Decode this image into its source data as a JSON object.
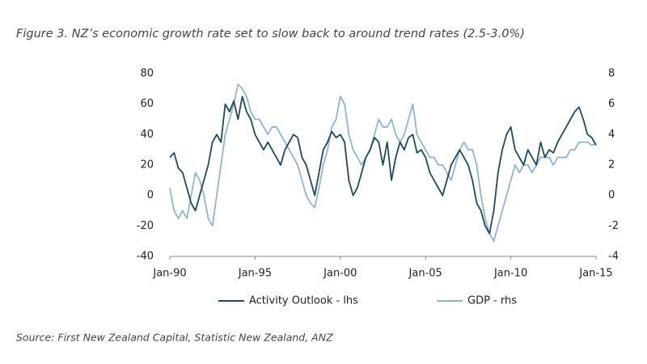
{
  "chart_data": {
    "type": "line",
    "title": "Figure 3. NZ’s economic growth rate set to slow back to around trend rates (2.5-3.0%)",
    "source": "Source: First New Zealand Capital, Statistic New Zealand, ANZ",
    "x": [
      1990,
      1990.25,
      1990.5,
      1990.75,
      1991,
      1991.25,
      1991.5,
      1991.75,
      1992,
      1992.25,
      1992.5,
      1992.75,
      1993,
      1993.25,
      1993.5,
      1993.75,
      1994,
      1994.25,
      1994.5,
      1994.75,
      1995,
      1995.25,
      1995.5,
      1995.75,
      1996,
      1996.25,
      1996.5,
      1996.75,
      1997,
      1997.25,
      1997.5,
      1997.75,
      1998,
      1998.25,
      1998.5,
      1998.75,
      1999,
      1999.25,
      1999.5,
      1999.75,
      2000,
      2000.25,
      2000.5,
      2000.75,
      2001,
      2001.25,
      2001.5,
      2001.75,
      2002,
      2002.25,
      2002.5,
      2002.75,
      2003,
      2003.25,
      2003.5,
      2003.75,
      2004,
      2004.25,
      2004.5,
      2004.75,
      2005,
      2005.25,
      2005.5,
      2005.75,
      2006,
      2006.25,
      2006.5,
      2006.75,
      2007,
      2007.25,
      2007.5,
      2007.75,
      2008,
      2008.25,
      2008.5,
      2008.75,
      2009,
      2009.25,
      2009.5,
      2009.75,
      2010,
      2010.25,
      2010.5,
      2010.75,
      2011,
      2011.25,
      2011.5,
      2011.75,
      2012,
      2012.25,
      2012.5,
      2012.75,
      2013,
      2013.25,
      2013.5,
      2013.75,
      2014,
      2014.25,
      2014.5,
      2014.75,
      2015
    ],
    "series": [
      {
        "name": "Activity Outlook - lhs",
        "color": "#1f4a5c",
        "axis": "y",
        "values": [
          25,
          28,
          18,
          15,
          5,
          -5,
          -10,
          0,
          10,
          20,
          35,
          40,
          35,
          60,
          55,
          62,
          50,
          65,
          55,
          50,
          40,
          35,
          30,
          35,
          30,
          25,
          20,
          30,
          35,
          40,
          38,
          25,
          20,
          10,
          0,
          15,
          30,
          35,
          42,
          38,
          40,
          35,
          10,
          0,
          5,
          15,
          25,
          30,
          38,
          35,
          20,
          35,
          10,
          25,
          35,
          30,
          38,
          40,
          28,
          30,
          25,
          15,
          10,
          5,
          0,
          10,
          20,
          25,
          30,
          25,
          20,
          10,
          -5,
          -10,
          -20,
          -25,
          -10,
          15,
          30,
          40,
          45,
          30,
          25,
          20,
          30,
          25,
          20,
          35,
          25,
          30,
          28,
          35,
          40,
          45,
          50,
          55,
          58,
          50,
          40,
          38,
          33
        ]
      },
      {
        "name": "GDP - rhs",
        "color": "#8fb4d6",
        "axis": "y2",
        "values": [
          0.5,
          -1,
          -1.5,
          -1,
          -1.5,
          0,
          1.5,
          1,
          0,
          -1.5,
          -2,
          0,
          2,
          4,
          5,
          6,
          7.3,
          7,
          6.5,
          5.5,
          5,
          5,
          4.5,
          4,
          4.5,
          4.5,
          4,
          3.5,
          3,
          2.5,
          2,
          1,
          0,
          -0.5,
          -0.8,
          0.5,
          2,
          3,
          4.5,
          5,
          6.5,
          6,
          4,
          3,
          2.5,
          2,
          2.5,
          3,
          4,
          5,
          4.5,
          4.5,
          5,
          4,
          3.5,
          4,
          5,
          6,
          4,
          3.5,
          3,
          2.5,
          2.5,
          2,
          2,
          1.5,
          1,
          2,
          3,
          3.5,
          3,
          3,
          2,
          0,
          -1.5,
          -2.5,
          -3,
          -2,
          -1,
          0,
          1,
          2,
          1.5,
          2,
          2,
          1.5,
          2,
          2.5,
          2.5,
          2.5,
          2,
          2.5,
          2.5,
          2.5,
          3,
          3,
          3.5,
          3.5,
          3.5,
          3.3,
          3.4
        ]
      }
    ],
    "xlim": [
      1990,
      2015
    ],
    "xticks": [
      {
        "value": 1990,
        "label": "Jan-90"
      },
      {
        "value": 1995,
        "label": "Jan-95"
      },
      {
        "value": 2000,
        "label": "Jan-00"
      },
      {
        "value": 2005,
        "label": "Jan-05"
      },
      {
        "value": 2010,
        "label": "Jan-10"
      },
      {
        "value": 2015,
        "label": "Jan-15"
      }
    ],
    "ylim": [
      -40,
      80
    ],
    "yticks": [
      -40,
      -20,
      0,
      20,
      40,
      60,
      80
    ],
    "y2lim": [
      -4,
      8
    ],
    "y2ticks": [
      -4,
      -2,
      0,
      2,
      4,
      6,
      8
    ],
    "legend": "bottom"
  }
}
